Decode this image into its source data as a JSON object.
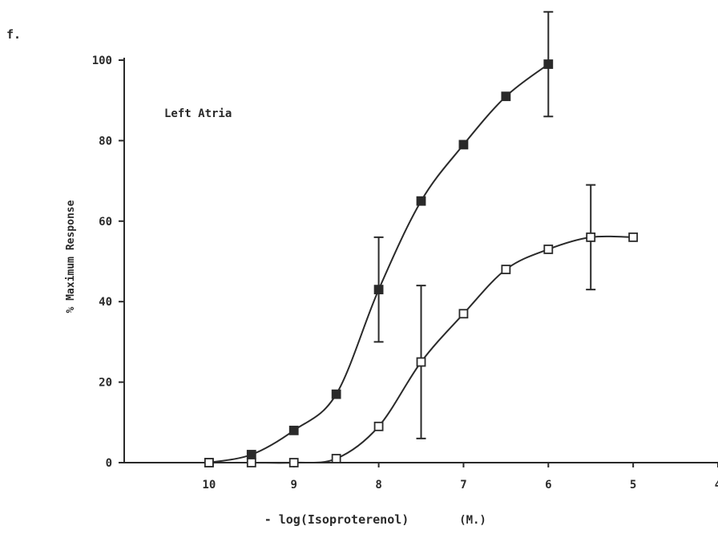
{
  "panel_label": "f.",
  "chart_data": {
    "type": "line",
    "annotation": "Left Atria",
    "xlabel": "- log(Isoproterenol)",
    "xlabel_unit": "(M.)",
    "ylabel": "% Maximum Response",
    "x_reversed": true,
    "xlim": [
      11,
      4
    ],
    "ylim": [
      0,
      100
    ],
    "x_ticks": [
      10,
      9,
      8,
      7,
      6,
      5,
      4
    ],
    "y_ticks": [
      0,
      20,
      40,
      60,
      80,
      100
    ],
    "grid": false,
    "series": [
      {
        "marker": "filled-square",
        "color": "#2a2a2a",
        "points": [
          {
            "x": 10,
            "y": 0
          },
          {
            "x": 9.5,
            "y": 2
          },
          {
            "x": 9,
            "y": 8
          },
          {
            "x": 8.5,
            "y": 17
          },
          {
            "x": 8,
            "y": 43,
            "err": 13
          },
          {
            "x": 7.5,
            "y": 65
          },
          {
            "x": 7,
            "y": 79
          },
          {
            "x": 6.5,
            "y": 91
          },
          {
            "x": 6,
            "y": 99,
            "err": 13
          }
        ]
      },
      {
        "marker": "open-square",
        "color": "#2a2a2a",
        "points": [
          {
            "x": 10,
            "y": 0
          },
          {
            "x": 9.5,
            "y": 0
          },
          {
            "x": 9,
            "y": 0
          },
          {
            "x": 8.5,
            "y": 1
          },
          {
            "x": 8,
            "y": 9
          },
          {
            "x": 7.5,
            "y": 25,
            "err": 19
          },
          {
            "x": 7,
            "y": 37
          },
          {
            "x": 6.5,
            "y": 48
          },
          {
            "x": 6,
            "y": 53
          },
          {
            "x": 5.5,
            "y": 56,
            "err": 13
          },
          {
            "x": 5,
            "y": 56
          }
        ]
      }
    ]
  }
}
